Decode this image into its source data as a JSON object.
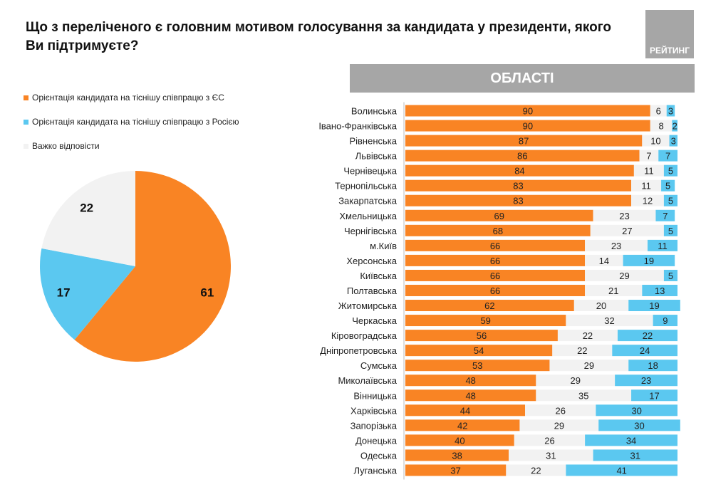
{
  "title": "Що з переліченого є головним мотивом голосування за кандидата у президенти, якого Ви підтримуєте?",
  "logo_text": "РЕЙТИНГ",
  "regions_header": "ОБЛАСТІ",
  "colors": {
    "eu": "#f98424",
    "russia": "#5bc8f0",
    "hard": "#f2f2f2"
  },
  "chart_data": [
    {
      "type": "pie",
      "legend_position": "top-left",
      "series": [
        {
          "name": "Орієнтація кандидата на тіснішу співпрацю з ЄС",
          "value": 61
        },
        {
          "name": "Орієнтація кандидата на тіснішу співпрацю з Росією",
          "value": 17
        },
        {
          "name": "Важко відповісти",
          "value": 22
        }
      ]
    },
    {
      "type": "bar",
      "stacked": true,
      "orientation": "horizontal",
      "xlim": [
        0,
        100
      ],
      "categories": [
        "Волинська",
        "Івано-Франківська",
        "Рівненська",
        "Львівська",
        "Чернівецька",
        "Тернопільська",
        "Закарпатська",
        "Хмельницька",
        "Чернігівська",
        "м.Київ",
        "Херсонська",
        "Київська",
        "Полтавська",
        "Житомирська",
        "Черкаська",
        "Кіровоградська",
        "Дніпропетровська",
        "Сумська",
        "Миколаївська",
        "Вінницька",
        "Харківська",
        "Запорізька",
        "Донецька",
        "Одеська",
        "Луганська"
      ],
      "series": [
        {
          "name": "Орієнтація кандидата на тіснішу співпрацю з ЄС",
          "values": [
            90,
            90,
            87,
            86,
            84,
            83,
            83,
            69,
            68,
            66,
            66,
            66,
            66,
            62,
            59,
            56,
            54,
            53,
            48,
            48,
            44,
            42,
            40,
            38,
            37
          ]
        },
        {
          "name": "Важко відповісти",
          "values": [
            6,
            8,
            10,
            7,
            11,
            11,
            12,
            23,
            27,
            23,
            14,
            29,
            21,
            20,
            32,
            22,
            22,
            29,
            29,
            35,
            26,
            29,
            26,
            31,
            22
          ]
        },
        {
          "name": "Орієнтація кандидата на тіснішу співпрацю з Росією",
          "values": [
            3,
            2,
            3,
            7,
            5,
            5,
            5,
            7,
            5,
            11,
            19,
            5,
            13,
            19,
            9,
            22,
            24,
            18,
            23,
            17,
            30,
            30,
            34,
            31,
            41
          ]
        }
      ]
    }
  ]
}
